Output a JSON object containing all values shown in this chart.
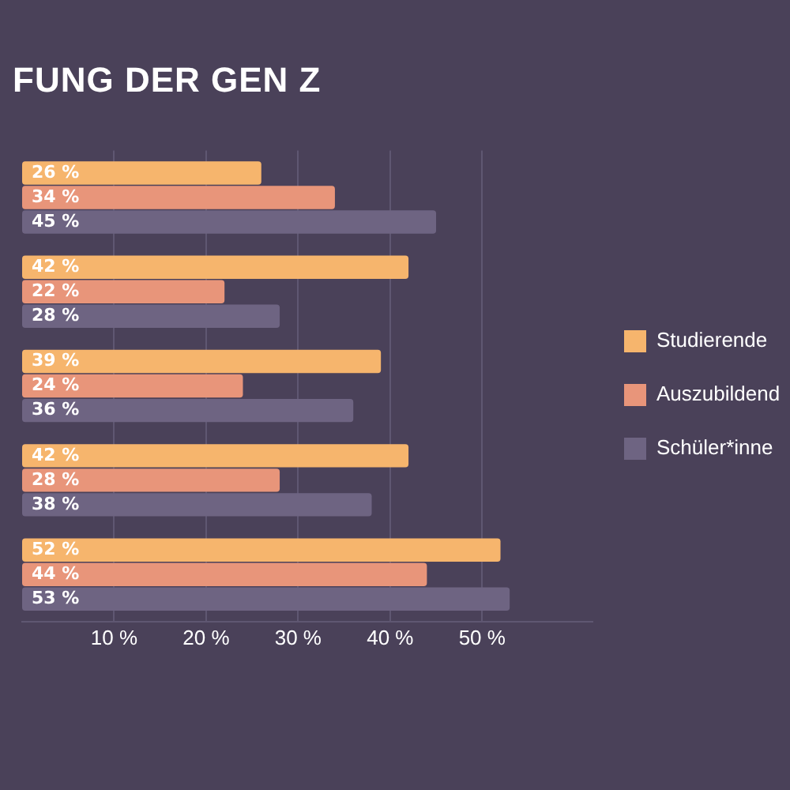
{
  "chart_data": {
    "type": "bar",
    "orientation": "horizontal",
    "title": "FUNG DER GEN Z",
    "categories": [
      null,
      null,
      null,
      null,
      null
    ],
    "series": [
      {
        "name": "Studierende",
        "color": "#f6b56d",
        "values": [
          26,
          42,
          39,
          42,
          52
        ],
        "value_labels": [
          "26 %",
          "42 %",
          "39 %",
          "42 %",
          "52 %"
        ]
      },
      {
        "name": "Auszubildend",
        "color": "#e8957a",
        "values": [
          34,
          22,
          24,
          28,
          44
        ],
        "value_labels": [
          "34 %",
          "22 %",
          "24 %",
          "28 %",
          "44 %"
        ]
      },
      {
        "name": "Schüler*inne",
        "color": "#6e6482",
        "values": [
          45,
          28,
          36,
          38,
          53
        ],
        "value_labels": [
          "45 %",
          "28 %",
          "36 %",
          "38 %",
          "53 %"
        ]
      }
    ],
    "xlim": [
      0,
      62
    ],
    "xticks": [
      {
        "value": 10,
        "label": "10 %"
      },
      {
        "value": 20,
        "label": "20 %"
      },
      {
        "value": 30,
        "label": "30 %"
      },
      {
        "value": 40,
        "label": "40 %"
      },
      {
        "value": 50,
        "label": "50 %"
      }
    ],
    "grid": "x",
    "legend": "right"
  }
}
